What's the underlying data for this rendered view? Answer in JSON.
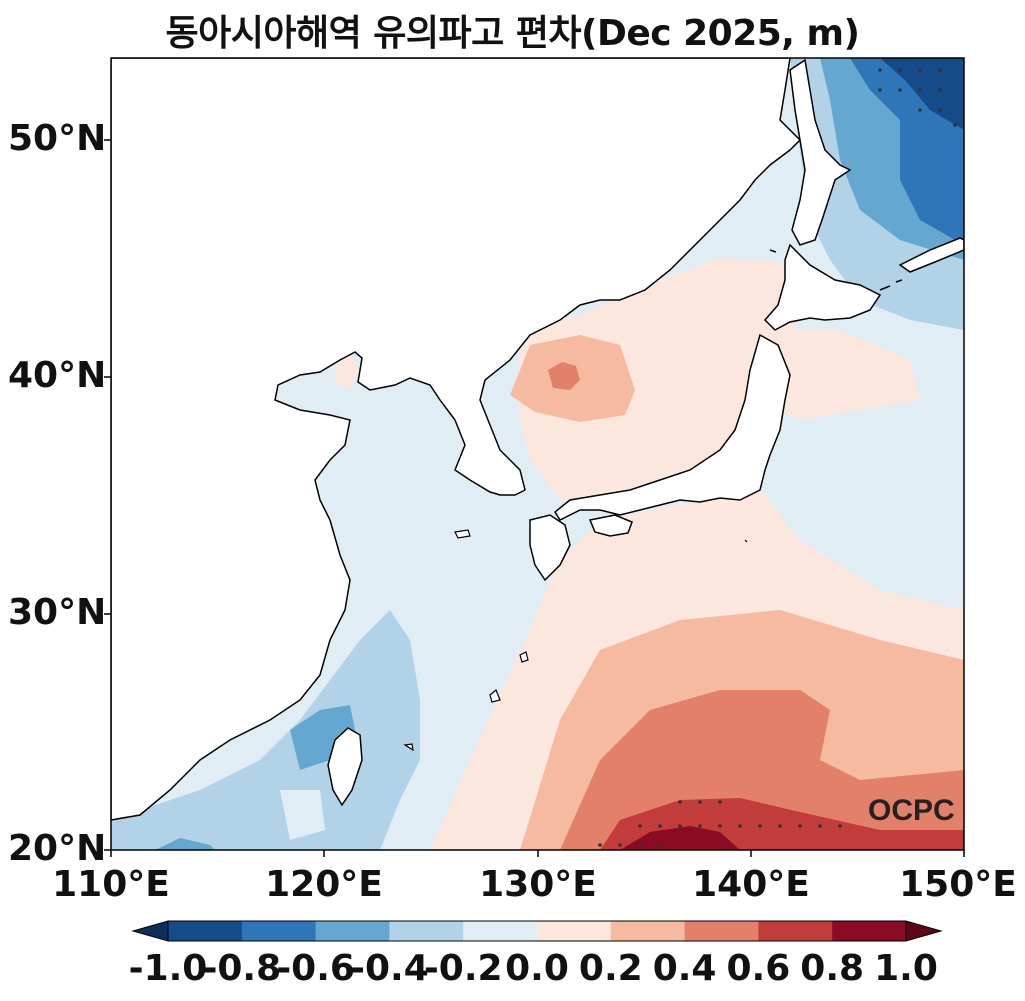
{
  "title": "동아시아해역 유의파고 편차(Dec 2025, m)",
  "watermark": "OCPC",
  "map": {
    "lon_range": [
      110,
      150
    ],
    "lat_range": [
      20,
      53.5
    ],
    "lon_ticks": [
      "110°E",
      "120°E",
      "130°E",
      "140°E",
      "150°E"
    ],
    "lat_ticks": [
      "20°N",
      "30°N",
      "40°N",
      "50°N"
    ],
    "land_color": "#ffffff",
    "coastline_color": "#000000"
  },
  "colorbar": {
    "levels": [
      "-1.0",
      "-0.8",
      "-0.6",
      "-0.4",
      "-0.2",
      "0.0",
      "0.2",
      "0.4",
      "0.6",
      "0.8",
      "1.0"
    ],
    "colors": [
      "#154b88",
      "#2e76b8",
      "#64a7d0",
      "#b2d3e7",
      "#e1edf4",
      "#fbe7dd",
      "#f5baa0",
      "#e3806a",
      "#c33c3c",
      "#8b0b25"
    ],
    "under_color": "#0d2d5a",
    "over_color": "#5e0618"
  }
}
